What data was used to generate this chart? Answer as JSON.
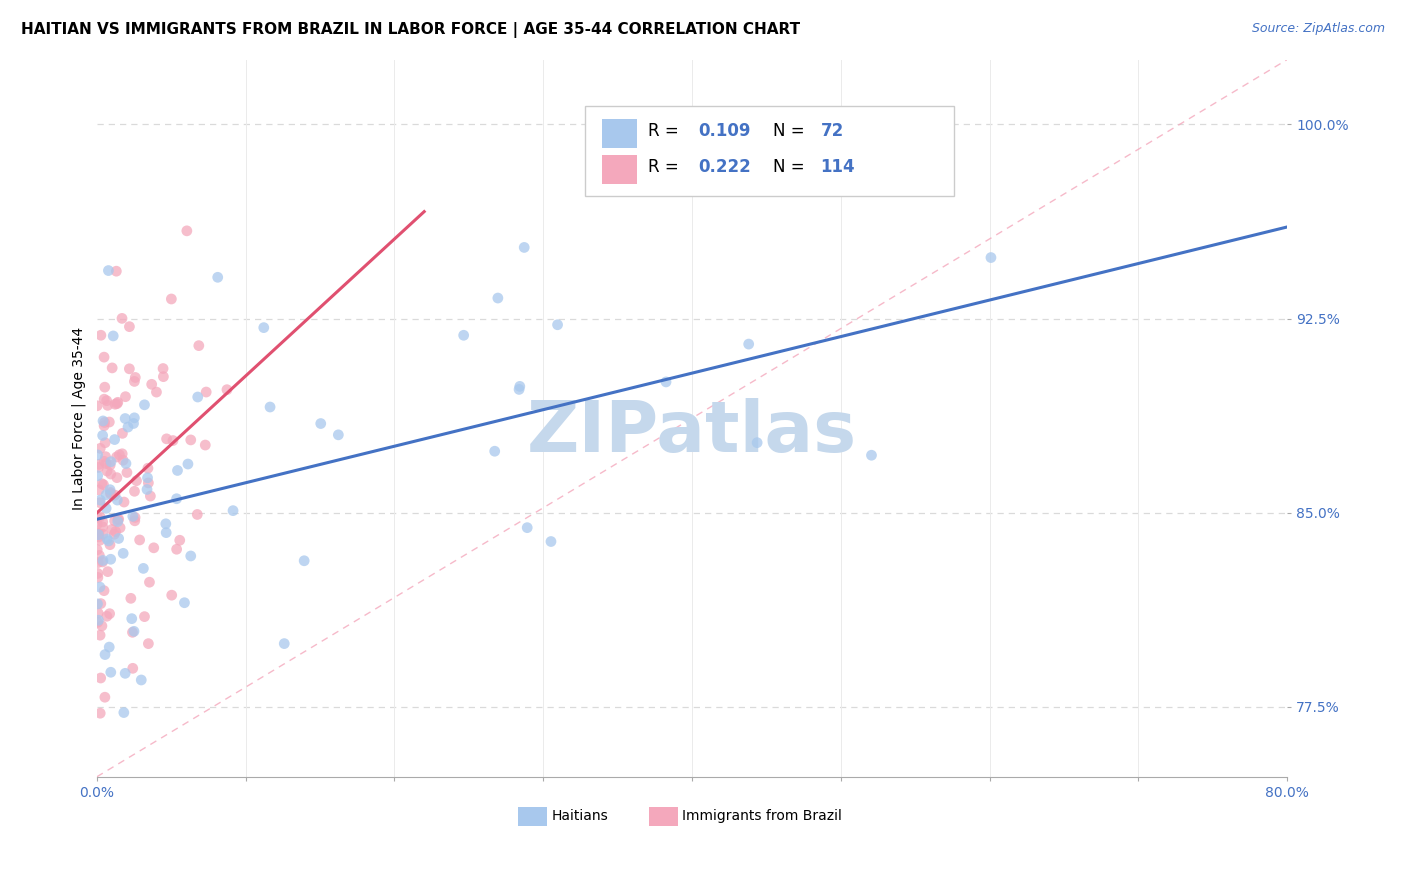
{
  "title": "HAITIAN VS IMMIGRANTS FROM BRAZIL IN LABOR FORCE | AGE 35-44 CORRELATION CHART",
  "source": "Source: ZipAtlas.com",
  "ylabel": "In Labor Force | Age 35-44",
  "x_min": 0.0,
  "x_max": 0.8,
  "y_min": 0.748,
  "y_max": 1.025,
  "x_ticks": [
    0.0,
    0.1,
    0.2,
    0.3,
    0.4,
    0.5,
    0.6,
    0.7,
    0.8
  ],
  "x_tick_labels": [
    "0.0%",
    "",
    "",
    "",
    "",
    "",
    "",
    "",
    "80.0%"
  ],
  "y_ticks": [
    0.775,
    0.85,
    0.925,
    1.0
  ],
  "y_tick_labels": [
    "77.5%",
    "85.0%",
    "92.5%",
    "100.0%"
  ],
  "haitians_R": 0.109,
  "haitians_N": 72,
  "brazil_R": 0.222,
  "brazil_N": 114,
  "haitians_color": "#A8C8ED",
  "brazil_color": "#F4A8BC",
  "haitians_line_color": "#4472C4",
  "brazil_line_color": "#E05070",
  "diagonal_line_color": "#F4A8BC",
  "grid_color": "#DADADA",
  "watermark": "ZIPatlas",
  "watermark_color": "#C5D8EC",
  "title_fontsize": 11,
  "source_fontsize": 9,
  "axis_label_fontsize": 10,
  "tick_fontsize": 10,
  "legend_fontsize": 12
}
